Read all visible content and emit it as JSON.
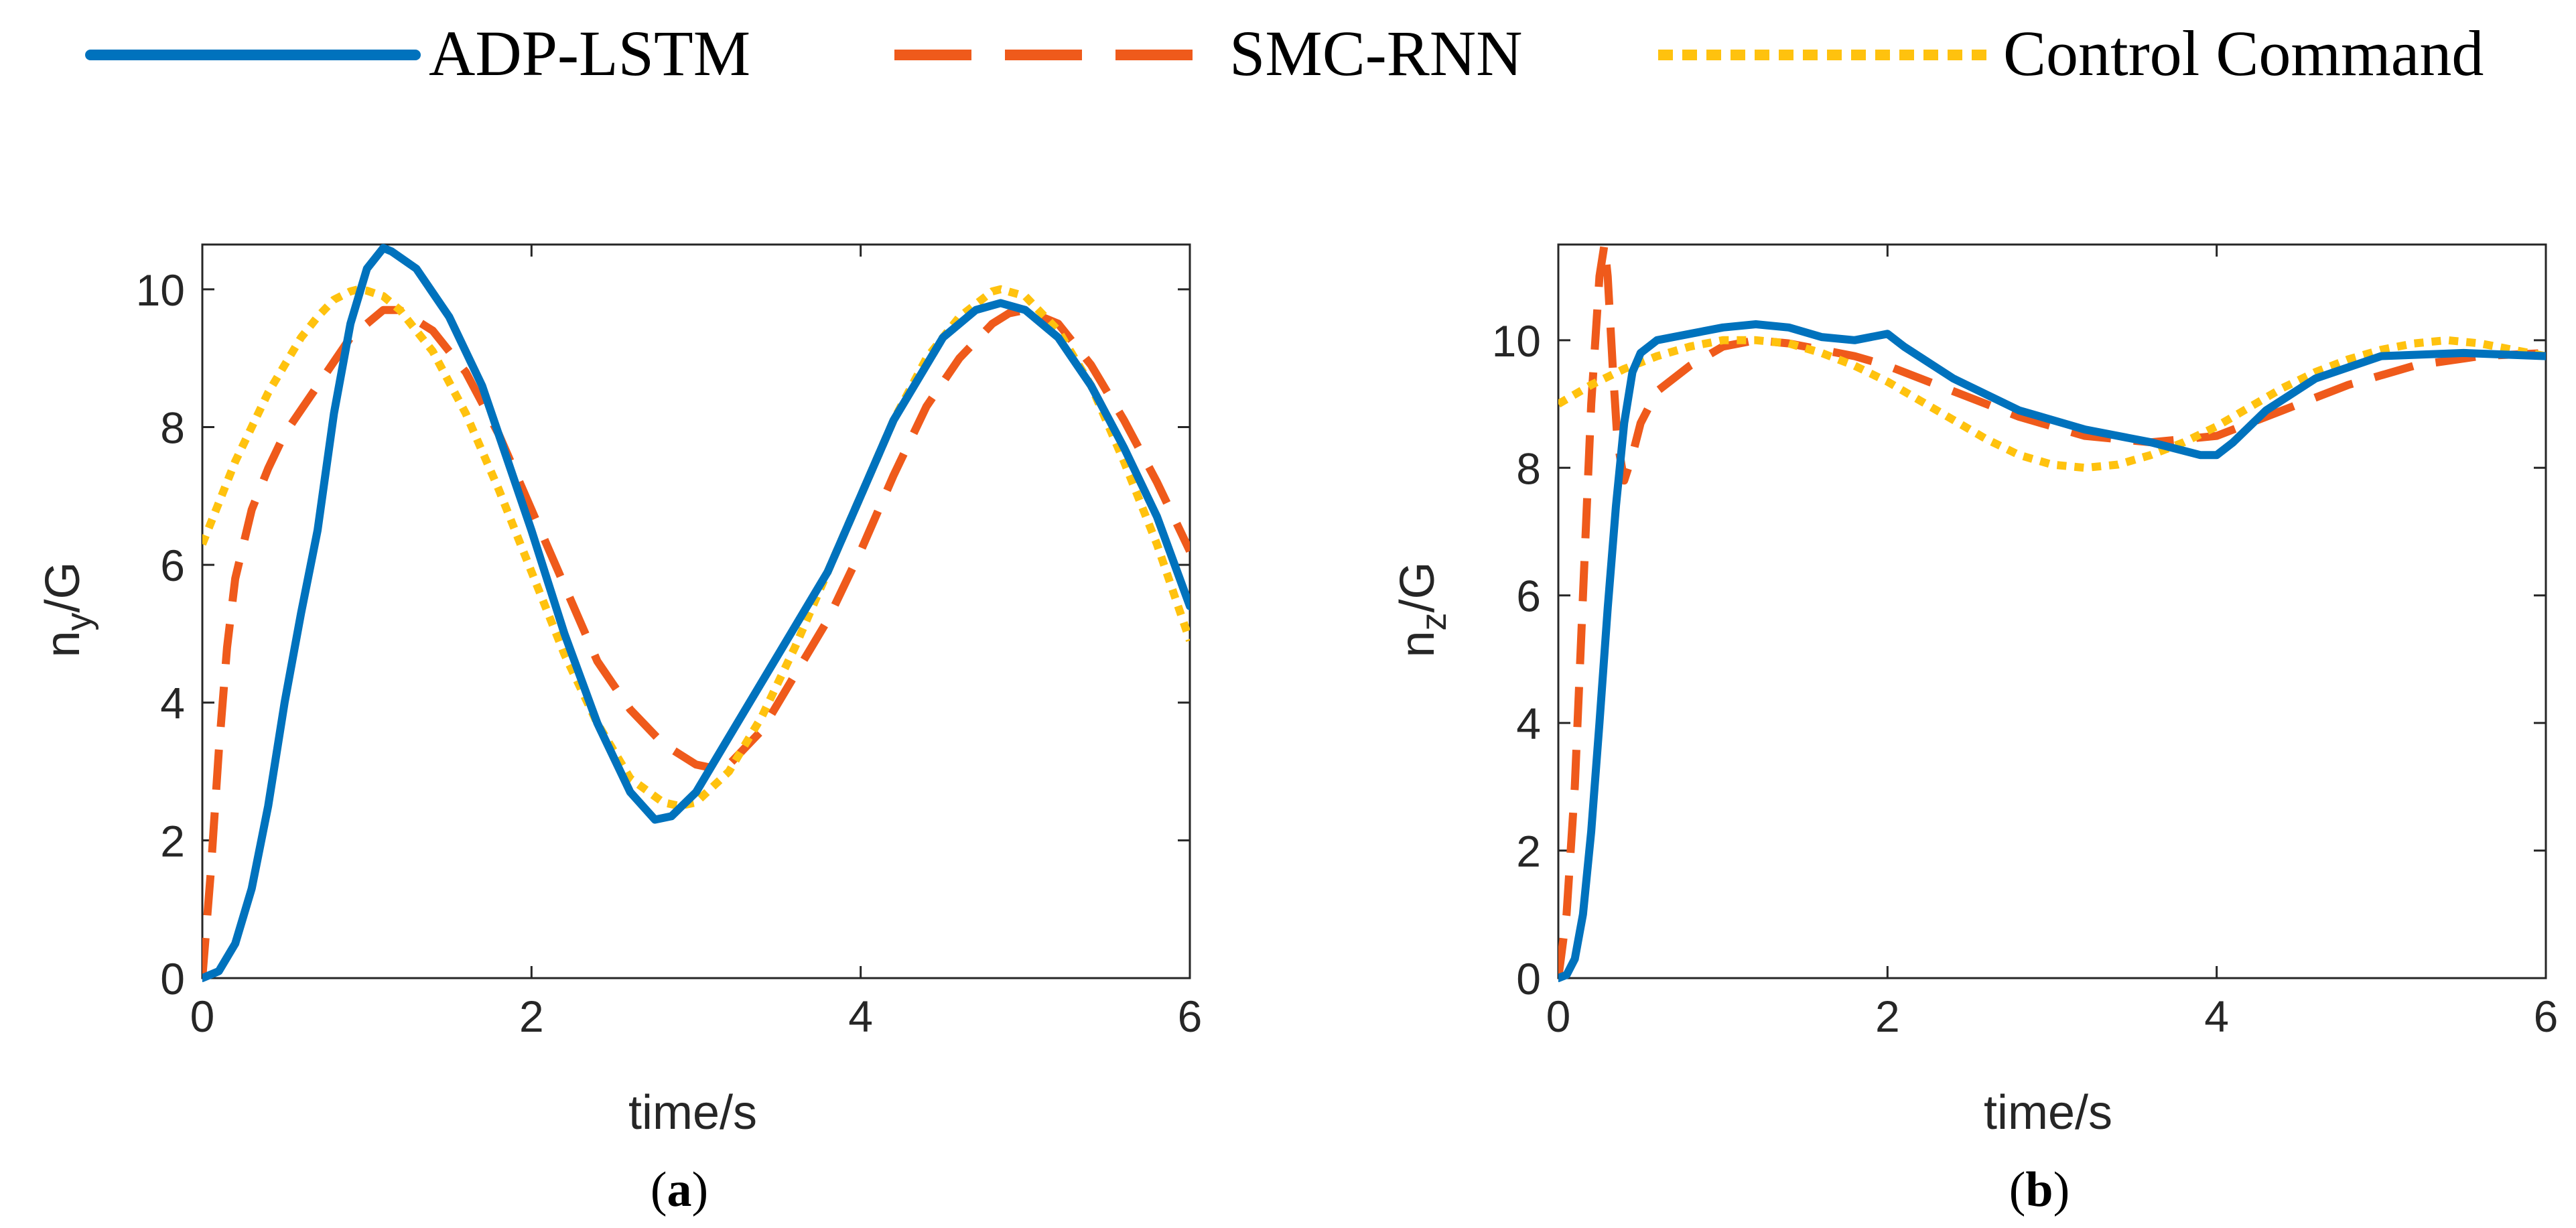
{
  "colors": {
    "adp_lstm": "#0072BD",
    "smc_rnn": "#EF5A1B",
    "control_command": "#FFC20E",
    "axis": "#262626"
  },
  "legend": {
    "items": [
      {
        "label": "ADP-LSTM",
        "style": "solid"
      },
      {
        "label": "SMC-RNN",
        "style": "dashed"
      },
      {
        "label": "Control Command",
        "style": "dotted"
      }
    ]
  },
  "chart_data": [
    {
      "type": "line",
      "panel_label": {
        "open": "(",
        "letter": "a",
        "close": ")"
      },
      "xlabel": "time/s",
      "ylabel": {
        "base": "n",
        "sub": "y",
        "rest": "/G"
      },
      "xlim": [
        0,
        6
      ],
      "ylim": [
        0,
        10.65
      ],
      "xticks": [
        0,
        2,
        4,
        6
      ],
      "yticks": [
        0,
        2,
        4,
        6,
        8,
        10
      ],
      "grid": false,
      "series": [
        {
          "name": "ADP-LSTM",
          "x": [
            0,
            0.1,
            0.2,
            0.3,
            0.4,
            0.5,
            0.6,
            0.7,
            0.8,
            0.9,
            1.0,
            1.1,
            1.15,
            1.3,
            1.5,
            1.7,
            2.0,
            2.2,
            2.4,
            2.6,
            2.75,
            2.85,
            3.0,
            3.2,
            3.5,
            3.8,
            4.0,
            4.2,
            4.5,
            4.7,
            4.85,
            5.0,
            5.2,
            5.4,
            5.6,
            5.8,
            6.0
          ],
          "y": [
            0,
            0.1,
            0.5,
            1.3,
            2.5,
            4.0,
            5.3,
            6.5,
            8.2,
            9.5,
            10.3,
            10.6,
            10.55,
            10.3,
            9.6,
            8.6,
            6.5,
            5.0,
            3.7,
            2.7,
            2.3,
            2.35,
            2.7,
            3.5,
            4.7,
            5.9,
            7.0,
            8.1,
            9.3,
            9.7,
            9.8,
            9.7,
            9.3,
            8.6,
            7.7,
            6.7,
            5.4
          ]
        },
        {
          "name": "SMC-RNN",
          "x": [
            0,
            0.05,
            0.1,
            0.15,
            0.2,
            0.3,
            0.4,
            0.5,
            0.7,
            0.9,
            1.1,
            1.2,
            1.4,
            1.6,
            1.8,
            2.0,
            2.2,
            2.4,
            2.6,
            2.8,
            3.0,
            3.1,
            3.2,
            3.4,
            3.6,
            3.8,
            4.0,
            4.2,
            4.4,
            4.6,
            4.8,
            4.9,
            5.0,
            5.2,
            5.4,
            5.6,
            5.8,
            6.0
          ],
          "y": [
            0,
            1.5,
            3.3,
            4.8,
            5.8,
            6.8,
            7.4,
            7.9,
            8.6,
            9.3,
            9.7,
            9.7,
            9.4,
            8.8,
            7.9,
            6.8,
            5.7,
            4.6,
            3.9,
            3.4,
            3.1,
            3.05,
            3.1,
            3.6,
            4.4,
            5.2,
            6.2,
            7.3,
            8.3,
            9.0,
            9.5,
            9.65,
            9.7,
            9.5,
            8.9,
            8.1,
            7.2,
            6.2
          ]
        },
        {
          "name": "Control Command",
          "x": [
            0,
            0.1,
            0.2,
            0.3,
            0.4,
            0.5,
            0.6,
            0.7,
            0.8,
            0.9,
            0.95,
            1.0,
            1.1,
            1.2,
            1.4,
            1.6,
            1.8,
            2.0,
            2.2,
            2.4,
            2.6,
            2.8,
            2.9,
            3.0,
            3.2,
            3.4,
            3.6,
            3.8,
            4.0,
            4.2,
            4.4,
            4.6,
            4.8,
            4.85,
            5.0,
            5.2,
            5.4,
            5.6,
            5.8,
            6.0
          ],
          "y": [
            6.3,
            6.9,
            7.5,
            8.0,
            8.5,
            8.9,
            9.3,
            9.6,
            9.85,
            9.97,
            10.0,
            9.98,
            9.9,
            9.7,
            9.1,
            8.2,
            7.1,
            5.9,
            4.7,
            3.7,
            2.9,
            2.55,
            2.5,
            2.55,
            3.0,
            3.8,
            4.8,
            5.9,
            7.0,
            8.1,
            9.0,
            9.6,
            9.97,
            10.0,
            9.9,
            9.4,
            8.6,
            7.5,
            6.3,
            4.9
          ]
        }
      ]
    },
    {
      "type": "line",
      "panel_label": {
        "open": "(",
        "letter": "b",
        "close": ")"
      },
      "xlabel": "time/s",
      "ylabel": {
        "base": "n",
        "sub": "z",
        "rest": "/G"
      },
      "xlim": [
        0,
        6
      ],
      "ylim": [
        0,
        11.5
      ],
      "xticks": [
        0,
        2,
        4,
        6
      ],
      "yticks": [
        0,
        2,
        4,
        6,
        8,
        10
      ],
      "grid": false,
      "series": [
        {
          "name": "ADP-LSTM",
          "x": [
            0,
            0.05,
            0.1,
            0.15,
            0.2,
            0.25,
            0.3,
            0.35,
            0.4,
            0.45,
            0.5,
            0.6,
            0.8,
            1.0,
            1.2,
            1.4,
            1.6,
            1.8,
            2.0,
            2.1,
            2.4,
            2.8,
            3.2,
            3.6,
            3.9,
            4.0,
            4.1,
            4.3,
            4.6,
            5.0,
            5.5,
            6.0
          ],
          "y": [
            0,
            0.05,
            0.3,
            1.0,
            2.3,
            4.0,
            5.8,
            7.4,
            8.7,
            9.5,
            9.8,
            10.0,
            10.1,
            10.2,
            10.25,
            10.2,
            10.05,
            10.0,
            10.1,
            9.9,
            9.4,
            8.9,
            8.6,
            8.4,
            8.2,
            8.2,
            8.4,
            8.9,
            9.4,
            9.75,
            9.8,
            9.75
          ]
        },
        {
          "name": "SMC-RNN",
          "x": [
            0,
            0.05,
            0.1,
            0.15,
            0.2,
            0.25,
            0.28,
            0.3,
            0.33,
            0.36,
            0.4,
            0.45,
            0.5,
            0.6,
            0.8,
            1.0,
            1.2,
            1.4,
            1.6,
            1.8,
            2.0,
            2.4,
            2.8,
            3.2,
            3.6,
            4.0,
            4.4,
            4.8,
            5.2,
            5.6,
            6.0
          ],
          "y": [
            0,
            1.0,
            3.0,
            6.0,
            9.0,
            11.0,
            11.5,
            11.0,
            9.6,
            8.4,
            7.8,
            8.2,
            8.7,
            9.2,
            9.6,
            9.9,
            10.0,
            9.95,
            9.85,
            9.75,
            9.6,
            9.2,
            8.8,
            8.5,
            8.4,
            8.5,
            8.9,
            9.3,
            9.6,
            9.75,
            9.8
          ]
        },
        {
          "name": "Control Command",
          "x": [
            0,
            0.2,
            0.4,
            0.6,
            0.8,
            1.0,
            1.2,
            1.4,
            1.6,
            1.8,
            2.0,
            2.2,
            2.4,
            2.6,
            2.8,
            3.0,
            3.2,
            3.4,
            3.6,
            3.8,
            4.0,
            4.2,
            4.4,
            4.6,
            4.8,
            5.0,
            5.2,
            5.4,
            5.6,
            5.8,
            6.0
          ],
          "y": [
            9.0,
            9.3,
            9.55,
            9.75,
            9.9,
            10.0,
            10.0,
            9.95,
            9.8,
            9.6,
            9.35,
            9.05,
            8.75,
            8.45,
            8.2,
            8.05,
            8.0,
            8.05,
            8.2,
            8.4,
            8.65,
            8.95,
            9.25,
            9.5,
            9.7,
            9.85,
            9.95,
            10.0,
            9.95,
            9.85,
            9.75
          ]
        }
      ]
    }
  ]
}
